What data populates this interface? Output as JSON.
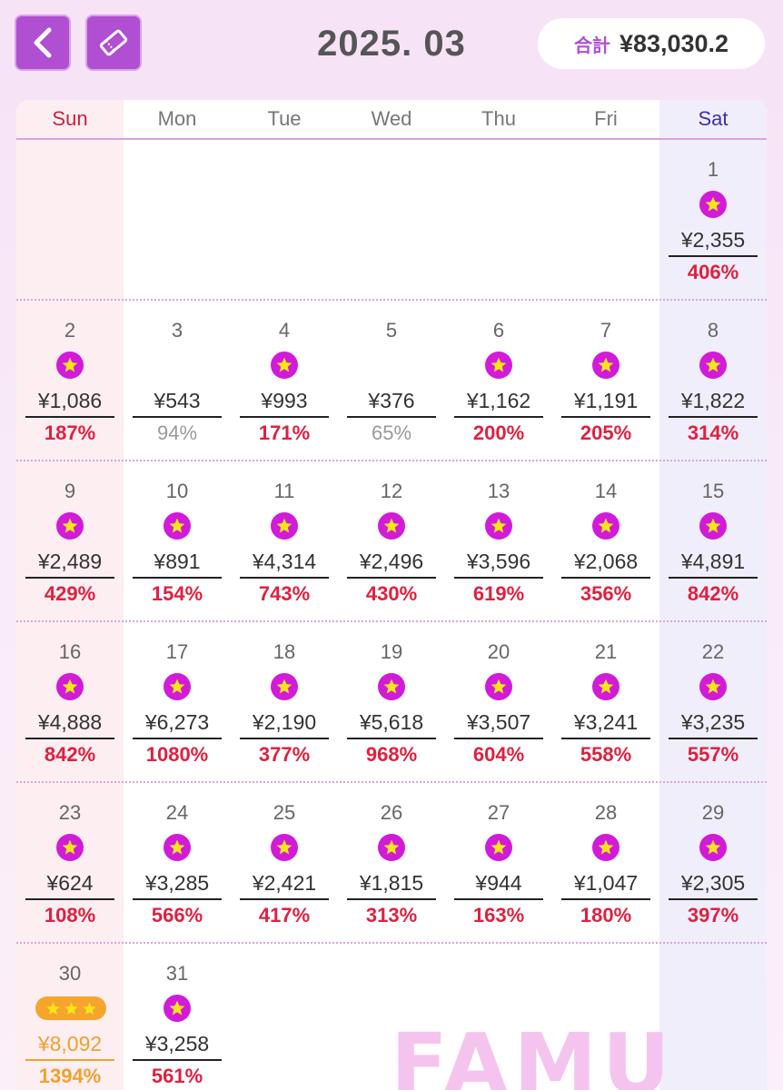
{
  "header": {
    "month": "2025. 03",
    "total_label": "合計",
    "total_value": "¥83,030.2"
  },
  "weekdays": [
    "Sun",
    "Mon",
    "Tue",
    "Wed",
    "Thu",
    "Fri",
    "Sat"
  ],
  "colors": {
    "accent": "#b04fd2",
    "star_badge": "#d21ad9",
    "star": "#f7e51a",
    "percent_high": "#e0203f",
    "percent_low": "#999999",
    "gold": "#f0a12e",
    "sunday": "#cc1f3c",
    "saturday": "#3d2fae"
  },
  "days": [
    {
      "date": "1",
      "amount": "¥2,355",
      "percent": "406%",
      "badge": "star"
    },
    {
      "date": "2",
      "amount": "¥1,086",
      "percent": "187%",
      "badge": "star"
    },
    {
      "date": "3",
      "amount": "¥543",
      "percent": "94%",
      "badge": "none"
    },
    {
      "date": "4",
      "amount": "¥993",
      "percent": "171%",
      "badge": "star"
    },
    {
      "date": "5",
      "amount": "¥376",
      "percent": "65%",
      "badge": "none"
    },
    {
      "date": "6",
      "amount": "¥1,162",
      "percent": "200%",
      "badge": "star"
    },
    {
      "date": "7",
      "amount": "¥1,191",
      "percent": "205%",
      "badge": "star"
    },
    {
      "date": "8",
      "amount": "¥1,822",
      "percent": "314%",
      "badge": "star"
    },
    {
      "date": "9",
      "amount": "¥2,489",
      "percent": "429%",
      "badge": "star"
    },
    {
      "date": "10",
      "amount": "¥891",
      "percent": "154%",
      "badge": "star"
    },
    {
      "date": "11",
      "amount": "¥4,314",
      "percent": "743%",
      "badge": "star"
    },
    {
      "date": "12",
      "amount": "¥2,496",
      "percent": "430%",
      "badge": "star"
    },
    {
      "date": "13",
      "amount": "¥3,596",
      "percent": "619%",
      "badge": "star"
    },
    {
      "date": "14",
      "amount": "¥2,068",
      "percent": "356%",
      "badge": "star"
    },
    {
      "date": "15",
      "amount": "¥4,891",
      "percent": "842%",
      "badge": "star"
    },
    {
      "date": "16",
      "amount": "¥4,888",
      "percent": "842%",
      "badge": "star"
    },
    {
      "date": "17",
      "amount": "¥6,273",
      "percent": "1080%",
      "badge": "star"
    },
    {
      "date": "18",
      "amount": "¥2,190",
      "percent": "377%",
      "badge": "star"
    },
    {
      "date": "19",
      "amount": "¥5,618",
      "percent": "968%",
      "badge": "star"
    },
    {
      "date": "20",
      "amount": "¥3,507",
      "percent": "604%",
      "badge": "star"
    },
    {
      "date": "21",
      "amount": "¥3,241",
      "percent": "558%",
      "badge": "star"
    },
    {
      "date": "22",
      "amount": "¥3,235",
      "percent": "557%",
      "badge": "star"
    },
    {
      "date": "23",
      "amount": "¥624",
      "percent": "108%",
      "badge": "star"
    },
    {
      "date": "24",
      "amount": "¥3,285",
      "percent": "566%",
      "badge": "star"
    },
    {
      "date": "25",
      "amount": "¥2,421",
      "percent": "417%",
      "badge": "star"
    },
    {
      "date": "26",
      "amount": "¥1,815",
      "percent": "313%",
      "badge": "star"
    },
    {
      "date": "27",
      "amount": "¥944",
      "percent": "163%",
      "badge": "star"
    },
    {
      "date": "28",
      "amount": "¥1,047",
      "percent": "180%",
      "badge": "star"
    },
    {
      "date": "29",
      "amount": "¥2,305",
      "percent": "397%",
      "badge": "star"
    },
    {
      "date": "30",
      "amount": "¥8,092",
      "percent": "1394%",
      "badge": "three-stars"
    },
    {
      "date": "31",
      "amount": "¥3,258",
      "percent": "561%",
      "badge": "star"
    }
  ],
  "icons": {
    "back": "chevron-left-icon",
    "share": "ticket-icon",
    "badge": "star-icon"
  },
  "logo": "FAMU"
}
